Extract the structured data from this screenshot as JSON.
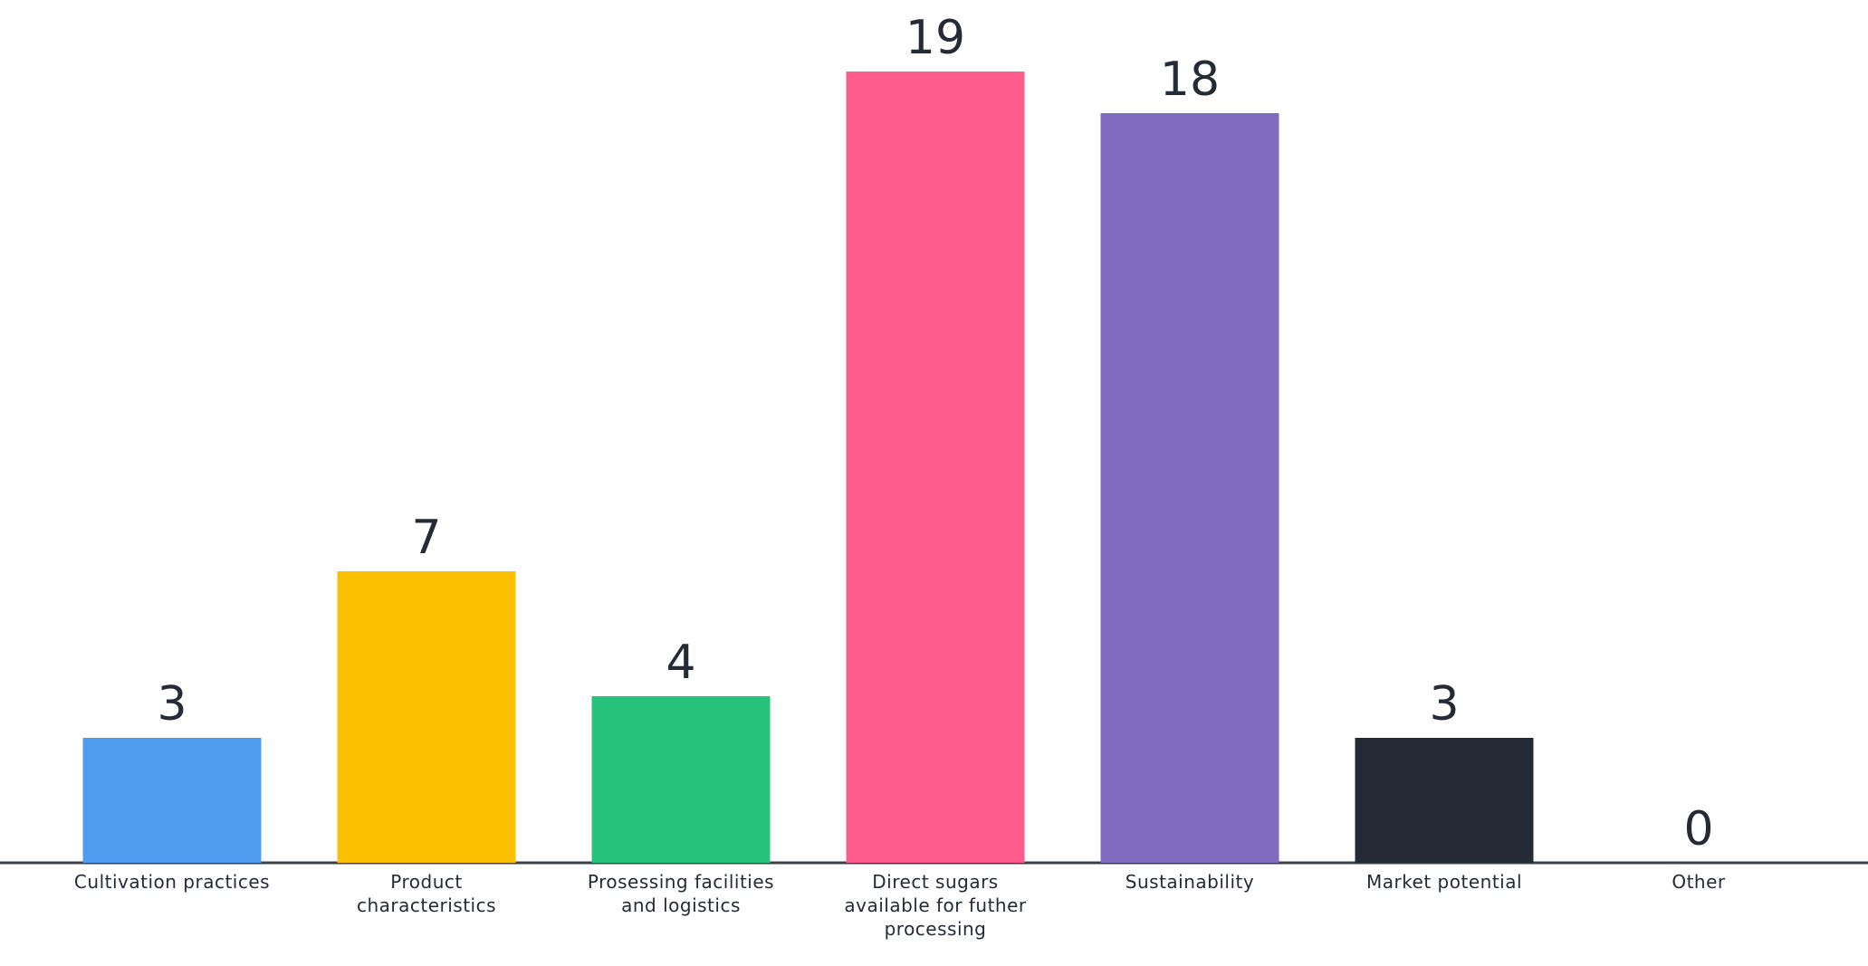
{
  "chart_data": {
    "type": "bar",
    "categories": [
      "Cultivation practices",
      "Product characteristics",
      "Prosessing facilities and logistics",
      "Direct sugars available for futher processing",
      "Sustainability",
      "Market potential",
      "Other"
    ],
    "values": [
      3,
      7,
      4,
      19,
      18,
      3,
      0
    ],
    "colors": [
      "#4f9bf0",
      "#fbc000",
      "#27c27c",
      "#fd5c8d",
      "#7f6bbf",
      "#252b36",
      "#9aa0a6"
    ]
  }
}
